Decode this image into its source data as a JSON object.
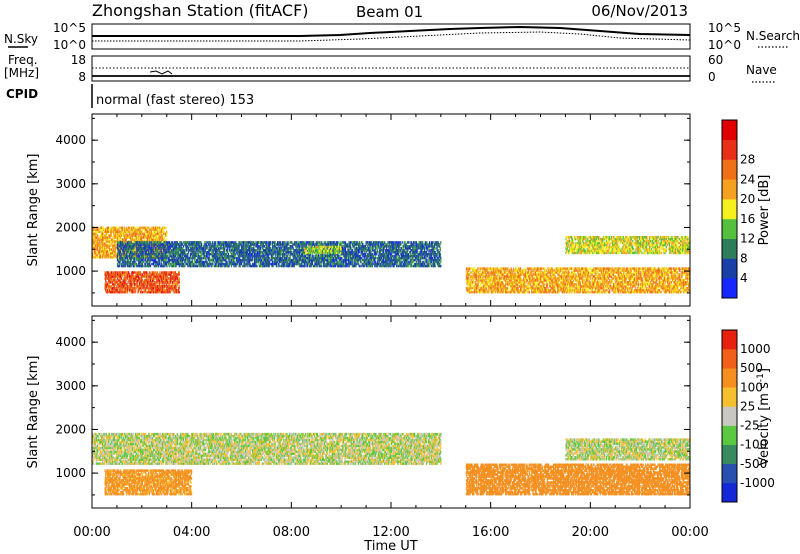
{
  "header": {
    "title": "Zhongshan Station (fitACF)",
    "beam": "Beam 01",
    "date": "06/Nov/2013"
  },
  "noise_panel": {
    "left_label": "N.Sky",
    "right_label": "N.Search",
    "ticks": [
      "10^5",
      "10^0"
    ],
    "right_ticks": [
      "10^5",
      "10^0"
    ]
  },
  "freq_panel": {
    "left_label_1": "Freq.",
    "left_label_2": "[MHz]",
    "ticks": [
      "18",
      "8"
    ],
    "right_label": "Nave",
    "right_ticks": [
      "60",
      "0"
    ]
  },
  "cpid_panel": {
    "label": "CPID",
    "text": "normal (fast stereo) 153"
  },
  "x_axis": {
    "ticks": [
      "00:00",
      "04:00",
      "08:00",
      "12:00",
      "16:00",
      "20:00",
      "00:00"
    ],
    "label": "Time UT"
  },
  "y_axis": {
    "label": "Slant Range [km]",
    "ticks": [
      "1000",
      "2000",
      "3000",
      "4000"
    ]
  },
  "power_scale": {
    "label": "Power [dB]",
    "ticks": [
      "4",
      "8",
      "12",
      "16",
      "20",
      "24",
      "28"
    ],
    "colors": [
      "#1428ff",
      "#1a3fa8",
      "#2e7d5a",
      "#55c040",
      "#f5f020",
      "#f5a020",
      "#f07018",
      "#e83018",
      "#e00000"
    ]
  },
  "velocity_scale": {
    "label": "Velocity [m s",
    "label_sup": "-1",
    "label_end": "]",
    "ticks": [
      "1000",
      "500",
      "100",
      "25",
      "-25",
      "-100",
      "-500",
      "-1000"
    ],
    "colors": [
      "#1428d8",
      "#2850b0",
      "#3a8a60",
      "#5ac840",
      "#c8c8c0",
      "#f5c030",
      "#f59020",
      "#f06018",
      "#e82010"
    ]
  },
  "chart_data": [
    {
      "type": "heatmap",
      "title": "Power",
      "xlabel": "Time UT",
      "ylabel": "Slant Range [km]",
      "xlim": [
        0,
        24
      ],
      "ylim": [
        200,
        4600
      ],
      "colorbar": "Power [dB]",
      "regions": [
        {
          "t": [
            0.0,
            3.0
          ],
          "r": [
            1300,
            2000
          ],
          "value": 20
        },
        {
          "t": [
            0.5,
            3.5
          ],
          "r": [
            500,
            1000
          ],
          "value": 26
        },
        {
          "t": [
            1.0,
            14.0
          ],
          "r": [
            1100,
            1700
          ],
          "value": 6
        },
        {
          "t": [
            8.5,
            10.0
          ],
          "r": [
            1400,
            1600
          ],
          "value": 14
        },
        {
          "t": [
            15.0,
            24.0
          ],
          "r": [
            500,
            1100
          ],
          "value": 20
        },
        {
          "t": [
            19.0,
            24.0
          ],
          "r": [
            1400,
            1800
          ],
          "value": 16
        }
      ]
    },
    {
      "type": "heatmap",
      "title": "Velocity",
      "xlabel": "Time UT",
      "ylabel": "Slant Range [km]",
      "xlim": [
        0,
        24
      ],
      "ylim": [
        200,
        4600
      ],
      "colorbar": "Velocity [m s-1]",
      "regions": [
        {
          "t": [
            0.0,
            14.0
          ],
          "r": [
            1200,
            1900
          ],
          "value": 0
        },
        {
          "t": [
            0.5,
            4.0
          ],
          "r": [
            500,
            1100
          ],
          "value": -150
        },
        {
          "t": [
            15.0,
            24.0
          ],
          "r": [
            500,
            1200
          ],
          "value": -200
        },
        {
          "t": [
            19.0,
            24.0
          ],
          "r": [
            1300,
            1800
          ],
          "value": 0
        }
      ]
    }
  ]
}
